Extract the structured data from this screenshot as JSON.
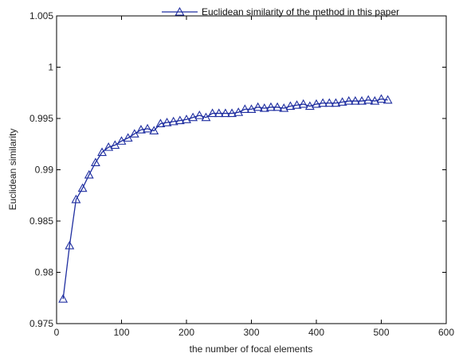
{
  "chart_data": {
    "type": "line",
    "title": "",
    "xlabel": "the number of focal elements",
    "ylabel": "Euclidean similarity",
    "xlim": [
      0,
      600
    ],
    "ylim": [
      0.975,
      1.005
    ],
    "xticks": [
      0,
      100,
      200,
      300,
      400,
      500,
      600
    ],
    "yticks": [
      0.975,
      0.98,
      0.985,
      0.99,
      0.995,
      1,
      1.005
    ],
    "xtick_labels": [
      "0",
      "100",
      "200",
      "300",
      "400",
      "500",
      "600"
    ],
    "ytick_labels": [
      "0.975",
      "0.98",
      "0.985",
      "0.99",
      "0.995",
      "1",
      "1.005"
    ],
    "grid": false,
    "legend_position": "top-right",
    "series": [
      {
        "name": "Euclidean similarity of the method in this paper",
        "color": "#1f2ea0",
        "marker": "triangle",
        "x": [
          10,
          20,
          30,
          40,
          50,
          60,
          70,
          80,
          90,
          100,
          110,
          120,
          130,
          140,
          150,
          160,
          170,
          180,
          190,
          200,
          210,
          220,
          230,
          240,
          250,
          260,
          270,
          280,
          290,
          300,
          310,
          320,
          330,
          340,
          350,
          360,
          370,
          380,
          390,
          400,
          410,
          420,
          430,
          440,
          450,
          460,
          470,
          480,
          490,
          500,
          510
        ],
        "y": [
          0.9774,
          0.9826,
          0.9871,
          0.9882,
          0.9895,
          0.9907,
          0.9917,
          0.9922,
          0.9924,
          0.9928,
          0.9931,
          0.9935,
          0.9939,
          0.994,
          0.9938,
          0.9945,
          0.9946,
          0.9947,
          0.9948,
          0.9949,
          0.9951,
          0.9953,
          0.9951,
          0.9955,
          0.9955,
          0.9955,
          0.9955,
          0.9956,
          0.9959,
          0.9959,
          0.9961,
          0.996,
          0.9961,
          0.9961,
          0.996,
          0.9962,
          0.9963,
          0.9964,
          0.9962,
          0.9964,
          0.9965,
          0.9965,
          0.9965,
          0.9966,
          0.9967,
          0.9967,
          0.9967,
          0.9968,
          0.9967,
          0.9969,
          0.9968
        ]
      }
    ]
  }
}
